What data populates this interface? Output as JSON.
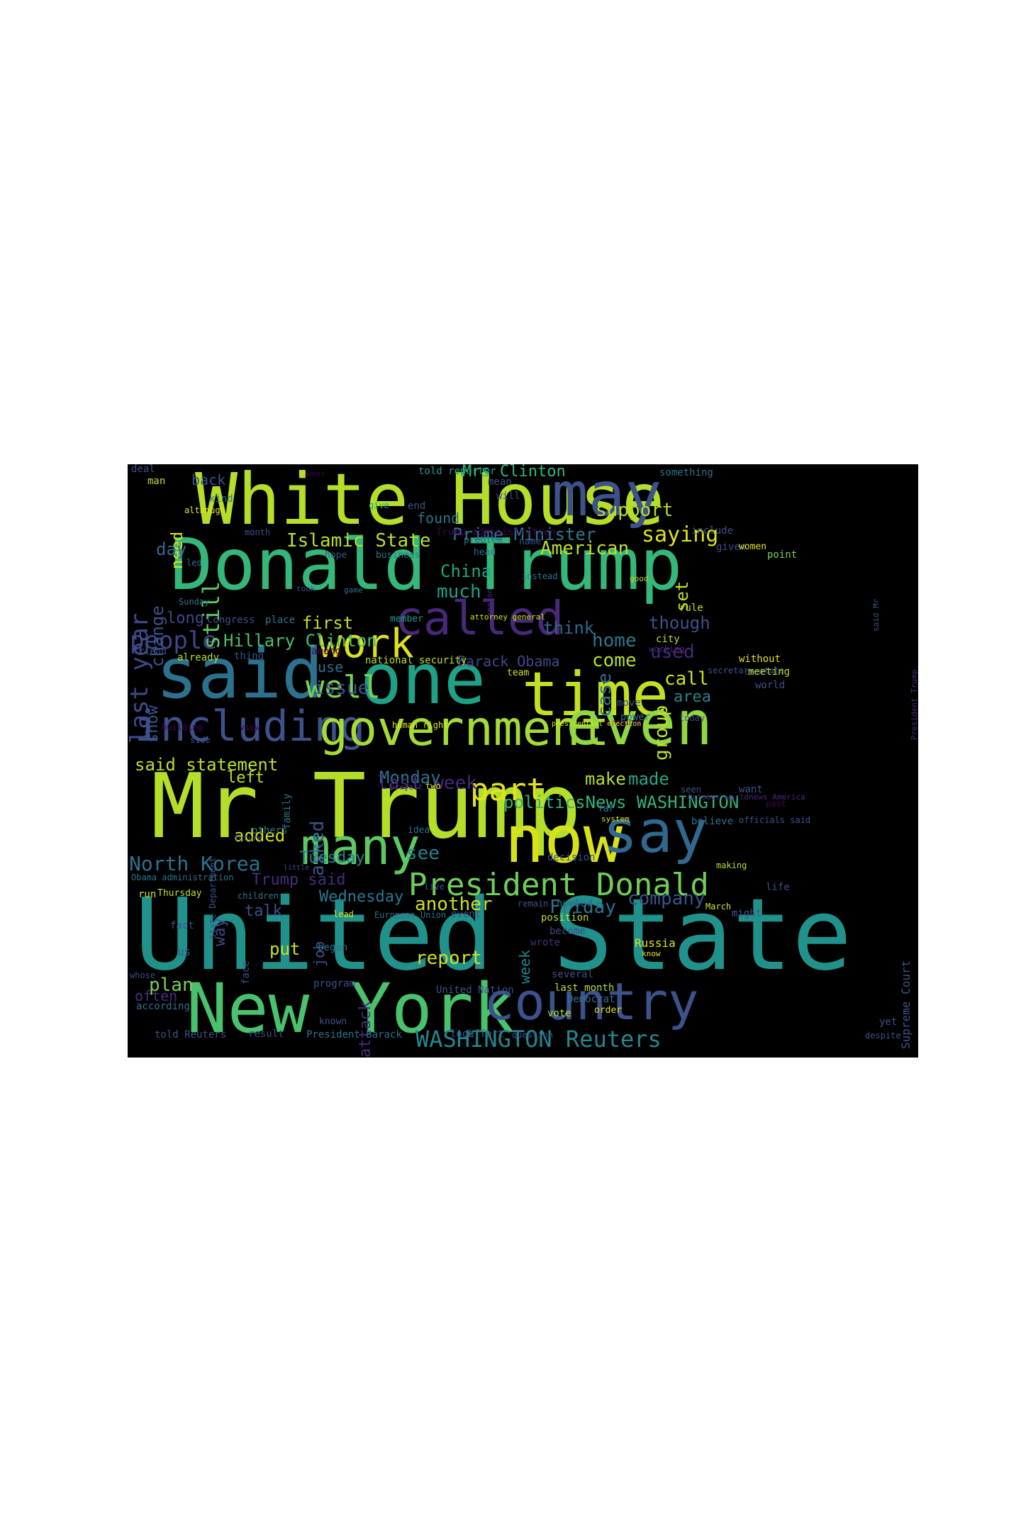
{
  "cloud": {
    "background": "#000000",
    "palette": {
      "yellow": "#e3e418",
      "lime": "#b5de2b",
      "green": "#6ece58",
      "teal": "#26a784",
      "cyan": "#1f9e89",
      "blue": "#2f6c8e",
      "navy": "#3b528b",
      "purple": "#472d7b",
      "violet": "#440154"
    },
    "words": [
      {
        "text": "White House",
        "color": "#b5de2b"
      },
      {
        "text": "Donald Trump",
        "color": "#35b779"
      },
      {
        "text": "may",
        "color": "#3b528b"
      },
      {
        "text": "said",
        "color": "#2c728e"
      },
      {
        "text": "one",
        "color": "#1fa187"
      },
      {
        "text": "time",
        "color": "#c2df23"
      },
      {
        "text": "called",
        "color": "#482878"
      },
      {
        "text": "work",
        "color": "#dde318"
      },
      {
        "text": "including",
        "color": "#3b528b"
      },
      {
        "text": "government",
        "color": "#a5db36"
      },
      {
        "text": "even",
        "color": "#90d743"
      },
      {
        "text": "Mr Trump",
        "color": "#b5de2b"
      },
      {
        "text": "now",
        "color": "#d8e219"
      },
      {
        "text": "say",
        "color": "#31688e"
      },
      {
        "text": "many",
        "color": "#5ec962"
      },
      {
        "text": "United State",
        "color": "#21918c"
      },
      {
        "text": "New York",
        "color": "#4ac16d"
      },
      {
        "text": "country",
        "color": "#3b528b"
      },
      {
        "text": "President Donald",
        "color": "#6ece58"
      },
      {
        "text": "WASHINGTON Reuters",
        "color": "#25858e"
      },
      {
        "text": "part",
        "color": "#e5e419"
      },
      {
        "text": "well",
        "color": "#7ad151"
      },
      {
        "text": "people",
        "color": "#414487"
      },
      {
        "text": "last year",
        "color": "#3e4a89"
      },
      {
        "text": "still",
        "color": "#5ec962"
      },
      {
        "text": "saying",
        "color": "#dde318"
      },
      {
        "text": "support",
        "color": "#b5de2b"
      },
      {
        "text": "American",
        "color": "#bddf26"
      },
      {
        "text": "Islamic State",
        "color": "#b8de29"
      },
      {
        "text": "Prime Minister",
        "color": "#2a788e"
      },
      {
        "text": "Mrs Clinton",
        "color": "#35b779"
      },
      {
        "text": "much",
        "color": "#1f9e89"
      },
      {
        "text": "China",
        "color": "#22a884"
      },
      {
        "text": "first",
        "color": "#bddf26"
      },
      {
        "text": "Hillary Clinton",
        "color": "#4ac16d"
      },
      {
        "text": "think",
        "color": "#31688e"
      },
      {
        "text": "home",
        "color": "#2a788e"
      },
      {
        "text": "come",
        "color": "#b5de2b"
      },
      {
        "text": "case",
        "color": "#2c728e"
      },
      {
        "text": "used",
        "color": "#482878"
      },
      {
        "text": "group",
        "color": "#bddf26"
      },
      {
        "text": "though",
        "color": "#3b528b"
      },
      {
        "text": "call",
        "color": "#c8e020"
      },
      {
        "text": "area",
        "color": "#26828e"
      },
      {
        "text": "issue",
        "color": "#3b528b"
      },
      {
        "text": "use",
        "color": "#2c728e"
      },
      {
        "text": "Barack Obama",
        "color": "#3e4a89"
      },
      {
        "text": "said statement",
        "color": "#bddf26"
      },
      {
        "text": "left",
        "color": "#c2df23"
      },
      {
        "text": "asked",
        "color": "#3b528b"
      },
      {
        "text": "Monday",
        "color": "#2c728e"
      },
      {
        "text": "last week",
        "color": "#482878"
      },
      {
        "text": "make",
        "color": "#b5de2b"
      },
      {
        "text": "made",
        "color": "#22a884"
      },
      {
        "text": "politicsNews WASHINGTON",
        "color": "#2fb47c"
      },
      {
        "text": "added",
        "color": "#d0e11c"
      },
      {
        "text": "North Korea",
        "color": "#2c728e"
      },
      {
        "text": "Tuesday",
        "color": "#26828e"
      },
      {
        "text": "Trump said",
        "color": "#472d7b"
      },
      {
        "text": "see",
        "color": "#26828e"
      },
      {
        "text": "Wednesday",
        "color": "#2a788e"
      },
      {
        "text": "another",
        "color": "#cde11d"
      },
      {
        "text": "talk",
        "color": "#3b528b"
      },
      {
        "text": "Friday",
        "color": "#2c728e"
      },
      {
        "text": "company",
        "color": "#3b528b"
      },
      {
        "text": "report",
        "color": "#d0e11c"
      },
      {
        "text": "put",
        "color": "#c8e020"
      },
      {
        "text": "plan",
        "color": "#7ad151"
      },
      {
        "text": "often",
        "color": "#472d7b"
      },
      {
        "text": "back",
        "color": "#3b528b"
      },
      {
        "text": "need",
        "color": "#dde318"
      },
      {
        "text": "day",
        "color": "#31688e"
      },
      {
        "text": "change",
        "color": "#3b528b"
      },
      {
        "text": "long",
        "color": "#3e4a89"
      },
      {
        "text": "show",
        "color": "#3b528b"
      },
      {
        "text": "way",
        "color": "#3e4a89"
      },
      {
        "text": "job",
        "color": "#3b528b"
      },
      {
        "text": "attack",
        "color": "#472d7b"
      },
      {
        "text": "week",
        "color": "#26828e"
      },
      {
        "text": "set",
        "color": "#c8e020"
      },
      {
        "text": "found",
        "color": "#2c728e"
      },
      {
        "text": "told reporter",
        "color": "#1f9e89"
      },
      {
        "text": "mean",
        "color": "#3b528b"
      },
      {
        "text": "will",
        "color": "#3e4a89"
      },
      {
        "text": "end",
        "color": "#3b528b"
      },
      {
        "text": "give",
        "color": "#1f9e89"
      },
      {
        "text": "something",
        "color": "#2c728e"
      },
      {
        "text": "include",
        "color": "#3b528b"
      },
      {
        "text": "given",
        "color": "#3e4a89"
      },
      {
        "text": "women",
        "color": "#dde318"
      },
      {
        "text": "point",
        "color": "#7ad151"
      },
      {
        "text": "Trump administration",
        "color": "#440154"
      },
      {
        "text": "problem",
        "color": "#2c728e"
      },
      {
        "text": "name",
        "color": "#3b528b"
      },
      {
        "text": "head",
        "color": "#2c728e"
      },
      {
        "text": "business",
        "color": "#2a788e"
      },
      {
        "text": "hope",
        "color": "#3b528b"
      },
      {
        "text": "deal",
        "color": "#3b528b"
      },
      {
        "text": "man",
        "color": "#bddf26"
      },
      {
        "text": "kind",
        "color": "#2a788e"
      },
      {
        "text": "although",
        "color": "#e5e419"
      },
      {
        "text": "month",
        "color": "#3b528b"
      },
      {
        "text": "led",
        "color": "#2c728e"
      },
      {
        "text": "went",
        "color": "#440154"
      },
      {
        "text": "Sunday",
        "color": "#2a788e"
      },
      {
        "text": "took",
        "color": "#3b528b"
      },
      {
        "text": "game",
        "color": "#2c728e"
      },
      {
        "text": "Congress",
        "color": "#3b528b"
      },
      {
        "text": "place",
        "color": "#2a788e"
      },
      {
        "text": "member",
        "color": "#1f9e89"
      },
      {
        "text": "attorney general",
        "color": "#d0e11c"
      },
      {
        "text": "instead",
        "color": "#2a788e"
      },
      {
        "text": "good",
        "color": "#bddf26"
      },
      {
        "text": "rule",
        "color": "#bddf26"
      },
      {
        "text": "region",
        "color": "#472d7b"
      },
      {
        "text": "friend",
        "color": "#3b528b"
      },
      {
        "text": "already",
        "color": "#b5de2b"
      },
      {
        "text": "thing",
        "color": "#3b528b"
      },
      {
        "text": "among",
        "color": "#440154"
      },
      {
        "text": "national security",
        "color": "#bddf26"
      },
      {
        "text": "city",
        "color": "#bddf26"
      },
      {
        "text": "working",
        "color": "#482878"
      },
      {
        "text": "team",
        "color": "#cde11d"
      },
      {
        "text": "came",
        "color": "#472d7b"
      },
      {
        "text": "secretary state",
        "color": "#3b528b"
      },
      {
        "text": "without",
        "color": "#dde318"
      },
      {
        "text": "meeting",
        "color": "#b5de2b"
      },
      {
        "text": "world",
        "color": "#3b528b"
      },
      {
        "text": "move",
        "color": "#3b528b"
      },
      {
        "text": "power",
        "color": "#2c728e"
      },
      {
        "text": "today",
        "color": "#3e4a89"
      },
      {
        "text": "around",
        "color": "#440154"
      },
      {
        "text": "building",
        "color": "#440154"
      },
      {
        "text": "view",
        "color": "#440154"
      },
      {
        "text": "human right",
        "color": "#dde318"
      },
      {
        "text": "presidential election",
        "color": "#e5e419"
      },
      {
        "text": "side",
        "color": "#3b528b"
      },
      {
        "text": "family",
        "color": "#2c728e"
      },
      {
        "text": "project",
        "color": "#472d7b"
      },
      {
        "text": "two",
        "color": "#dde318"
      },
      {
        "text": "seen",
        "color": "#3b528b"
      },
      {
        "text": "want",
        "color": "#3b528b"
      },
      {
        "text": "October worldnews America",
        "color": "#482878"
      },
      {
        "text": "past",
        "color": "#440154"
      },
      {
        "text": "far",
        "color": "#2a788e"
      },
      {
        "text": "system",
        "color": "#dde318"
      },
      {
        "text": "believe",
        "color": "#2c728e"
      },
      {
        "text": "officials said",
        "color": "#3b528b"
      },
      {
        "text": "State Department",
        "color": "#3b528b"
      },
      {
        "text": "future",
        "color": "#3b528b"
      },
      {
        "text": "others",
        "color": "#2c728e"
      },
      {
        "text": "help",
        "color": "#1f9e89"
      },
      {
        "text": "idea",
        "color": "#2c728e"
      },
      {
        "text": "decision",
        "color": "#3b528b"
      },
      {
        "text": "making",
        "color": "#b5de2b"
      },
      {
        "text": "little",
        "color": "#3b528b"
      },
      {
        "text": "Obama administration",
        "color": "#2c728e"
      },
      {
        "text": "run",
        "color": "#d8e219"
      },
      {
        "text": "Thursday",
        "color": "#bddf26"
      },
      {
        "text": "children",
        "color": "#2a788e"
      },
      {
        "text": "live",
        "color": "#3b528b"
      },
      {
        "text": "life",
        "color": "#3e4a89"
      },
      {
        "text": "remain",
        "color": "#3b528b"
      },
      {
        "text": "number",
        "color": "#2c728e"
      },
      {
        "text": "March",
        "color": "#dde318"
      },
      {
        "text": "might",
        "color": "#3b528b"
      },
      {
        "text": "fact",
        "color": "#3b528b"
      },
      {
        "text": "lead",
        "color": "#dde318"
      },
      {
        "text": "European Union",
        "color": "#2c728e"
      },
      {
        "text": "event",
        "color": "#3b528b"
      },
      {
        "text": "position",
        "color": "#b5de2b"
      },
      {
        "text": "become",
        "color": "#3e4a89"
      },
      {
        "text": "wrote",
        "color": "#472d7b"
      },
      {
        "text": "Russia",
        "color": "#dde318"
      },
      {
        "text": "know",
        "color": "#e5e419"
      },
      {
        "text": "face",
        "color": "#3b528b"
      },
      {
        "text": "us",
        "color": "#3b528b"
      },
      {
        "text": "began",
        "color": "#2c728e"
      },
      {
        "text": "whose",
        "color": "#3e4a89"
      },
      {
        "text": "several",
        "color": "#3b528b"
      },
      {
        "text": "Supreme Court",
        "color": "#3b528b"
      },
      {
        "text": "program",
        "color": "#3b528b"
      },
      {
        "text": "United Nation",
        "color": "#3b528b"
      },
      {
        "text": "last month",
        "color": "#b5de2b"
      },
      {
        "text": "Democrat",
        "color": "#2c728e"
      },
      {
        "text": "according",
        "color": "#2c728e"
      },
      {
        "text": "order",
        "color": "#dde318"
      },
      {
        "text": "vote",
        "color": "#b5de2b"
      },
      {
        "text": "known",
        "color": "#3b528b"
      },
      {
        "text": "yet",
        "color": "#3b528b"
      },
      {
        "text": "told Reuters",
        "color": "#3b528b"
      },
      {
        "text": "result",
        "color": "#3e4a89"
      },
      {
        "text": "President Barack",
        "color": "#2c728e"
      },
      {
        "text": "look",
        "color": "#3b528b"
      },
      {
        "text": "effort",
        "color": "#2c728e"
      },
      {
        "text": "question",
        "color": "#3b528b"
      },
      {
        "text": "despite",
        "color": "#3b528b"
      },
      {
        "text": "said Mr",
        "color": "#3b528b"
      },
      {
        "text": "President Trump",
        "color": "#472d7b"
      }
    ]
  }
}
